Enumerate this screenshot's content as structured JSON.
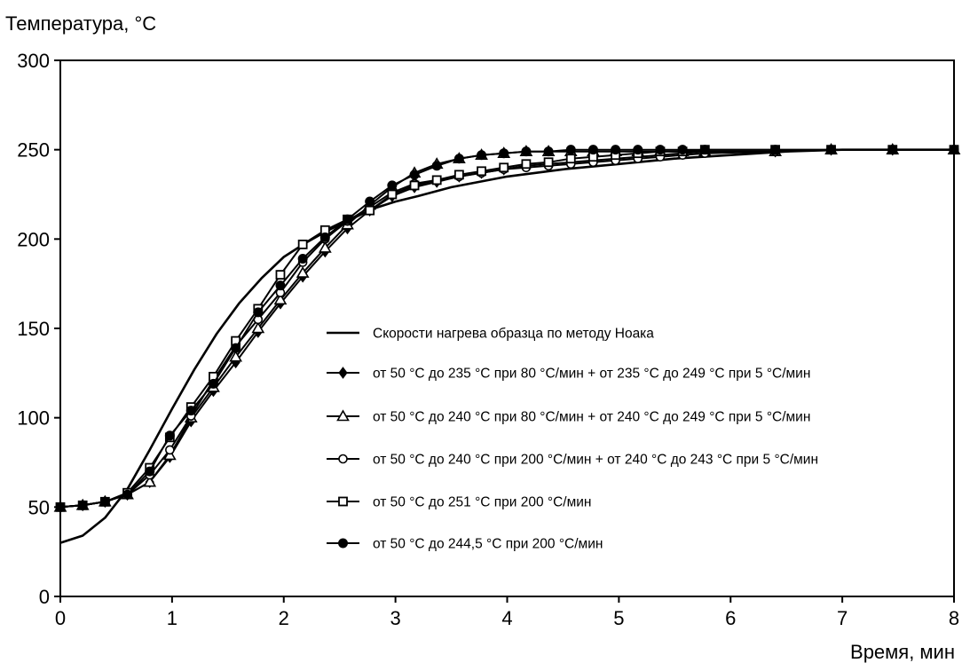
{
  "chart_data": {
    "type": "line",
    "ylabel": "Температура, °C",
    "xlabel": "Время, мин",
    "xlim": [
      0,
      8
    ],
    "ylim": [
      0,
      300
    ],
    "x_ticks": [
      "0",
      "1",
      "2",
      "3",
      "4",
      "5",
      "6",
      "7",
      "8"
    ],
    "y_ticks": [
      "0",
      "50",
      "100",
      "150",
      "200",
      "250",
      "300"
    ],
    "grid": false,
    "legend_position": "center-right",
    "series": [
      {
        "name": "Скорости нагрева образца по методу Ноака",
        "marker": "none",
        "x": [
          0,
          0.2,
          0.4,
          0.6,
          0.8,
          1.0,
          1.2,
          1.4,
          1.6,
          1.8,
          2.0,
          2.2,
          2.4,
          2.6,
          2.8,
          3.0,
          3.2,
          3.5,
          4.0,
          4.5,
          5.0,
          5.5,
          6.0,
          6.5,
          7.0,
          7.5,
          8.0
        ],
        "y": [
          30,
          34,
          44,
          60,
          82,
          105,
          127,
          147,
          164,
          178,
          190,
          198,
          205,
          211,
          217,
          221,
          224,
          229,
          235,
          239,
          242,
          245,
          247,
          249,
          250,
          250,
          250
        ]
      },
      {
        "name": "от 50 °C до 235 °C при 80 °C/мин + от 235 °C до 249 °C при 5 °C/мин",
        "marker": "diamond",
        "x": [
          0,
          0.2,
          0.4,
          0.6,
          0.8,
          0.98,
          1.17,
          1.37,
          1.57,
          1.77,
          1.97,
          2.17,
          2.37,
          2.57,
          2.77,
          2.97,
          3.17,
          3.37,
          3.57,
          3.77,
          3.97,
          4.17,
          4.37,
          4.57,
          4.77,
          4.97,
          5.17,
          5.37,
          5.57,
          5.77,
          6.4,
          6.9,
          7.45,
          8.0
        ],
        "y": [
          50,
          51,
          53,
          57,
          64,
          78,
          98,
          115,
          131,
          148,
          164,
          179,
          193,
          206,
          216,
          224,
          229,
          232,
          235,
          237,
          239,
          241,
          242,
          243,
          244,
          245,
          246,
          247,
          248,
          249,
          249,
          250,
          250,
          250
        ]
      },
      {
        "name": "от 50 °C до 240 °C при 80 °C/мин + от 240 °C до 249 °C при 5 °C/мин",
        "marker": "triangle",
        "x": [
          0,
          0.2,
          0.4,
          0.6,
          0.8,
          0.98,
          1.17,
          1.37,
          1.57,
          1.77,
          1.97,
          2.17,
          2.37,
          2.57,
          2.77,
          2.97,
          3.17,
          3.37,
          3.57,
          3.77,
          3.97,
          4.17,
          4.37,
          4.57,
          4.77,
          4.97,
          5.17,
          5.37,
          5.57,
          5.77,
          6.4,
          6.9,
          7.45,
          8.0
        ],
        "y": [
          50,
          51,
          53,
          57,
          64,
          79,
          100,
          117,
          134,
          150,
          166,
          181,
          195,
          208,
          219,
          229,
          237,
          242,
          245,
          247,
          248,
          249,
          249,
          249,
          249,
          249,
          249,
          249,
          249,
          249,
          249,
          250,
          250,
          250
        ]
      },
      {
        "name": "от 50 °C до 240 °C при 200 °C/мин + от 240 °C до 243 °C при 5 °C/мин",
        "marker": "circle-open",
        "x": [
          0,
          0.2,
          0.4,
          0.6,
          0.8,
          0.98,
          1.17,
          1.37,
          1.57,
          1.77,
          1.97,
          2.17,
          2.37,
          2.57,
          2.77,
          2.97,
          3.17,
          3.37,
          3.57,
          3.77,
          3.97,
          4.17,
          4.37,
          4.57,
          4.77,
          4.97,
          5.17,
          5.37,
          5.57,
          5.77,
          6.4,
          6.9,
          7.45,
          8.0
        ],
        "y": [
          50,
          51,
          53,
          57,
          68,
          82,
          101,
          121,
          140,
          155,
          170,
          187,
          200,
          210,
          218,
          226,
          231,
          233,
          235,
          237,
          239,
          240,
          241,
          242,
          243,
          244,
          245,
          246,
          247,
          248,
          249,
          250,
          250,
          250
        ]
      },
      {
        "name": "от 50 °C до 251 °C при 200 °C/мин",
        "marker": "square-open",
        "x": [
          0,
          0.2,
          0.4,
          0.6,
          0.8,
          0.98,
          1.17,
          1.37,
          1.57,
          1.77,
          1.97,
          2.17,
          2.37,
          2.57,
          2.77,
          2.97,
          3.17,
          3.37,
          3.57,
          3.77,
          3.97,
          4.17,
          4.37,
          4.57,
          4.77,
          4.97,
          5.17,
          5.37,
          5.57,
          5.77,
          6.4,
          6.9,
          7.45,
          8.0
        ],
        "y": [
          50,
          51,
          53,
          58,
          72,
          89,
          106,
          123,
          143,
          161,
          180,
          197,
          205,
          211,
          216,
          225,
          230,
          233,
          236,
          238,
          240,
          242,
          243,
          245,
          246,
          247,
          248,
          249,
          249,
          250,
          250,
          250,
          250,
          250
        ]
      },
      {
        "name": "от 50 °C до 244,5 °C при 200 °C/мин",
        "marker": "circle-filled",
        "x": [
          0,
          0.2,
          0.4,
          0.6,
          0.8,
          0.98,
          1.17,
          1.37,
          1.57,
          1.77,
          1.97,
          2.17,
          2.37,
          2.57,
          2.77,
          2.97,
          3.17,
          3.37,
          3.57,
          3.77,
          3.97,
          4.17,
          4.37,
          4.57,
          4.77,
          4.97,
          5.17,
          5.37,
          5.57,
          5.77,
          6.4,
          6.9,
          7.45,
          8.0
        ],
        "y": [
          50,
          51,
          53,
          57,
          70,
          90,
          104,
          119,
          139,
          159,
          174,
          189,
          201,
          211,
          221,
          230,
          236,
          241,
          245,
          247,
          248,
          249,
          249,
          250,
          250,
          250,
          250,
          250,
          250,
          250,
          250,
          250,
          250,
          250
        ]
      }
    ]
  }
}
